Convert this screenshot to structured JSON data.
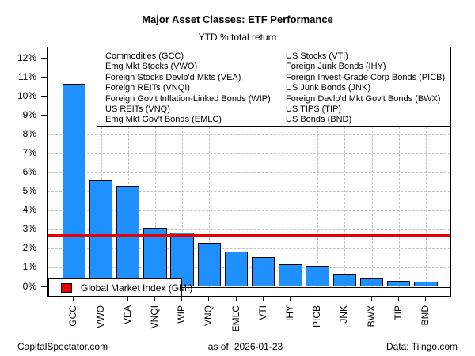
{
  "title": "Major Asset Classes: ETF Performance",
  "subtitle": "YTD % total return",
  "legend": {
    "col1": [
      "Commodities (GCC)",
      "Emg Mkt Stocks (VWO)",
      "Foreign Stocks Devlp'd Mkts (VEA)",
      "Foreign REITs (VNQI)",
      "Foreign Gov't Inflation-Linked Bonds (WIP)",
      "US REITs (VNQ)",
      "Emg Mkt Gov't Bonds (EMLC)"
    ],
    "col2": [
      "US Stocks (VTI)",
      "Foreign Junk Bonds (IHY)",
      "Foreign Invest-Grade Corp Bonds (PICB)",
      "US Junk Bonds (JNK)",
      "Foreign Devlp'd Mkt Gov't Bonds (BWX)",
      "US TIPS (TIP)",
      "US Bonds (BND)"
    ]
  },
  "gmi_legend": {
    "label": "Global Market Index (GMI)",
    "swatch_color": "#e60000"
  },
  "footer": {
    "left": "CapitalSpectator.com",
    "as_of_label": "as of",
    "as_of_date": "2026-01-23",
    "right": "Data: Tiingo.com"
  },
  "chart_data": {
    "type": "bar",
    "title": "Major Asset Classes: ETF Performance",
    "subtitle": "YTD % total return",
    "categories": [
      "GCC",
      "VWO",
      "VEA",
      "VNQI",
      "WIP",
      "VNQ",
      "EMLC",
      "VTI",
      "IHY",
      "PICB",
      "JNK",
      "BWX",
      "TIP",
      "BND"
    ],
    "values": [
      10.65,
      5.6,
      5.3,
      3.1,
      2.85,
      2.3,
      1.85,
      1.55,
      1.2,
      1.1,
      0.7,
      0.45,
      0.3,
      0.25
    ],
    "y_ticks": [
      "0%",
      "1%",
      "2%",
      "3%",
      "4%",
      "5%",
      "6%",
      "7%",
      "8%",
      "9%",
      "10%",
      "11%",
      "12%"
    ],
    "ylim": [
      0,
      12
    ],
    "xlabel": "",
    "ylabel": "",
    "grid": "dashed-gray-horizontal-and-vertical",
    "legend_position": "top-right",
    "bar_color": "#1E90FF",
    "bar_border_color": "#000000",
    "reference_line": {
      "label": "Global Market Index (GMI)",
      "value": 2.7,
      "color": "#e60000"
    }
  }
}
